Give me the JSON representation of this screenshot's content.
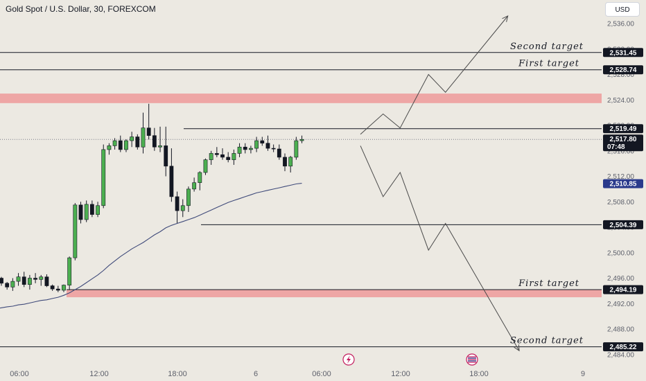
{
  "header": {
    "title": "Gold Spot / U.S. Dollar, 30, FOREXCOM",
    "currency_label": "USD"
  },
  "colors": {
    "background": "#ece9e2",
    "bull": "#4caf50",
    "bear": "#131722",
    "zone": "#ef9a9a",
    "moving_average": "#3f4a7a",
    "price_tag": "#131722",
    "ma_tag": "#2a3a8c"
  },
  "icons": [
    "lightning-icon",
    "us-flag-icon"
  ],
  "chart_data": {
    "type": "candlestick",
    "title": "Gold Spot / U.S. Dollar, 30, FOREXCOM",
    "y_ticks": [
      "2,536.00",
      "2,532.00",
      "2,528.00",
      "2,524.00",
      "2,520.00",
      "2,516.00",
      "2,512.00",
      "2,508.00",
      "2,504.00",
      "2,500.00",
      "2,496.00",
      "2,492.00",
      "2,488.00",
      "2,484.00"
    ],
    "x_ticks": [
      "06:00",
      "12:00",
      "18:00",
      "6",
      "06:00",
      "12:00",
      "18:00",
      "9"
    ],
    "ylim": [
      2483.5,
      2538.5
    ],
    "grid": false,
    "candles": [
      [
        2496.0,
        2496.2,
        2494.8,
        2495.2
      ],
      [
        2495.2,
        2495.4,
        2494.2,
        2494.6
      ],
      [
        2494.6,
        2496.0,
        2494.0,
        2495.5
      ],
      [
        2495.5,
        2496.8,
        2494.8,
        2496.2
      ],
      [
        2496.2,
        2497.0,
        2494.6,
        2495.0
      ],
      [
        2495.0,
        2496.5,
        2494.2,
        2496.0
      ],
      [
        2496.0,
        2496.8,
        2495.2,
        2495.8
      ],
      [
        2495.8,
        2496.5,
        2494.8,
        2496.2
      ],
      [
        2496.2,
        2496.6,
        2494.6,
        2494.8
      ],
      [
        2494.8,
        2495.0,
        2494.0,
        2494.3
      ],
      [
        2494.3,
        2494.8,
        2493.8,
        2494.1
      ],
      [
        2494.1,
        2495.0,
        2493.8,
        2494.9
      ],
      [
        2494.9,
        2499.4,
        2494.2,
        2499.2
      ],
      [
        2499.2,
        2507.8,
        2498.8,
        2507.5
      ],
      [
        2507.5,
        2508.0,
        2504.6,
        2505.2
      ],
      [
        2505.2,
        2508.2,
        2504.8,
        2507.6
      ],
      [
        2507.6,
        2508.2,
        2505.6,
        2506.0
      ],
      [
        2506.0,
        2508.0,
        2505.6,
        2507.4
      ],
      [
        2507.4,
        2517.0,
        2507.0,
        2516.2
      ],
      [
        2516.2,
        2517.2,
        2515.4,
        2516.8
      ],
      [
        2516.8,
        2518.0,
        2516.2,
        2517.6
      ],
      [
        2517.6,
        2518.4,
        2515.8,
        2516.2
      ],
      [
        2516.2,
        2517.8,
        2515.8,
        2517.6
      ],
      [
        2517.6,
        2519.0,
        2516.6,
        2518.2
      ],
      [
        2518.2,
        2518.6,
        2516.2,
        2516.6
      ],
      [
        2516.6,
        2522.0,
        2515.6,
        2519.6
      ],
      [
        2519.6,
        2523.4,
        2517.8,
        2518.4
      ],
      [
        2518.4,
        2519.6,
        2516.0,
        2516.6
      ],
      [
        2516.6,
        2519.8,
        2515.8,
        2516.8
      ],
      [
        2516.8,
        2519.8,
        2512.0,
        2513.6
      ],
      [
        2513.6,
        2516.4,
        2508.0,
        2508.8
      ],
      [
        2508.8,
        2509.6,
        2504.6,
        2506.6
      ],
      [
        2506.6,
        2508.4,
        2505.6,
        2507.4
      ],
      [
        2507.4,
        2510.4,
        2506.4,
        2510.0
      ],
      [
        2510.0,
        2511.8,
        2509.6,
        2511.0
      ],
      [
        2511.0,
        2512.8,
        2509.8,
        2512.6
      ],
      [
        2512.6,
        2514.8,
        2512.2,
        2514.6
      ],
      [
        2514.6,
        2516.0,
        2513.8,
        2515.6
      ],
      [
        2515.6,
        2516.6,
        2515.0,
        2515.4
      ],
      [
        2515.4,
        2516.4,
        2514.6,
        2515.0
      ],
      [
        2515.0,
        2515.8,
        2514.2,
        2514.6
      ],
      [
        2514.6,
        2516.2,
        2513.8,
        2515.6
      ],
      [
        2515.6,
        2517.2,
        2515.0,
        2516.6
      ],
      [
        2516.6,
        2517.2,
        2515.6,
        2516.2
      ],
      [
        2516.2,
        2516.8,
        2515.6,
        2516.4
      ],
      [
        2516.4,
        2518.2,
        2515.8,
        2517.6
      ],
      [
        2517.6,
        2518.2,
        2516.8,
        2517.2
      ],
      [
        2517.2,
        2518.4,
        2516.0,
        2516.4
      ],
      [
        2516.4,
        2517.0,
        2515.8,
        2516.3
      ],
      [
        2516.3,
        2517.0,
        2514.6,
        2515.0
      ],
      [
        2515.0,
        2515.6,
        2512.8,
        2513.6
      ],
      [
        2513.6,
        2515.2,
        2512.6,
        2515.0
      ],
      [
        2515.0,
        2518.2,
        2514.6,
        2517.6
      ],
      [
        2517.6,
        2518.4,
        2517.2,
        2517.8
      ]
    ],
    "moving_average": [
      2491.3,
      2491.5,
      2491.6,
      2491.8,
      2491.9,
      2492.1,
      2492.3,
      2492.5,
      2492.6,
      2492.8,
      2493.0,
      2493.3,
      2493.7,
      2494.2,
      2494.7,
      2495.3,
      2495.9,
      2496.5,
      2497.2,
      2498.0,
      2498.7,
      2499.4,
      2500.0,
      2500.6,
      2501.1,
      2501.6,
      2502.2,
      2502.8,
      2503.3,
      2503.9,
      2504.3,
      2504.6,
      2504.9,
      2505.2,
      2505.5,
      2505.9,
      2506.3,
      2506.7,
      2507.1,
      2507.5,
      2507.9,
      2508.2,
      2508.5,
      2508.8,
      2509.1,
      2509.4,
      2509.6,
      2509.8,
      2510.0,
      2510.2,
      2510.4,
      2510.6,
      2510.8,
      2510.9
    ],
    "horizontal_levels": [
      2531.45,
      2528.74,
      2519.49,
      2504.39,
      2494.19,
      2485.22
    ],
    "zones": [
      [
        2523.5,
        2525.0
      ],
      [
        2493.0,
        2494.2
      ]
    ],
    "bullish_path": [
      [
        2518.6,
        0
      ],
      [
        2521.8,
        4
      ],
      [
        2519.6,
        7
      ],
      [
        2528.0,
        12
      ],
      [
        2525.2,
        15
      ],
      [
        2537.2,
        26
      ]
    ],
    "bearish_path": [
      [
        2516.8,
        0
      ],
      [
        2508.8,
        4
      ],
      [
        2512.6,
        7
      ],
      [
        2500.4,
        12
      ],
      [
        2504.6,
        15
      ],
      [
        2484.6,
        28
      ]
    ],
    "price_tags": {
      "second_target_up": "2,531.45",
      "first_target_up": "2,528.74",
      "resistance": "2,519.49",
      "current_price": "2,517.80",
      "countdown": "07:48",
      "moving_average": "2,510.85",
      "support": "2,504.39",
      "first_target_down": "2,494.19",
      "second_target_down": "2,485.22"
    },
    "annotations": {
      "second_target_up": "Second target",
      "first_target_up": "First target",
      "first_target_down": "First target",
      "second_target_down": "Second target"
    }
  }
}
